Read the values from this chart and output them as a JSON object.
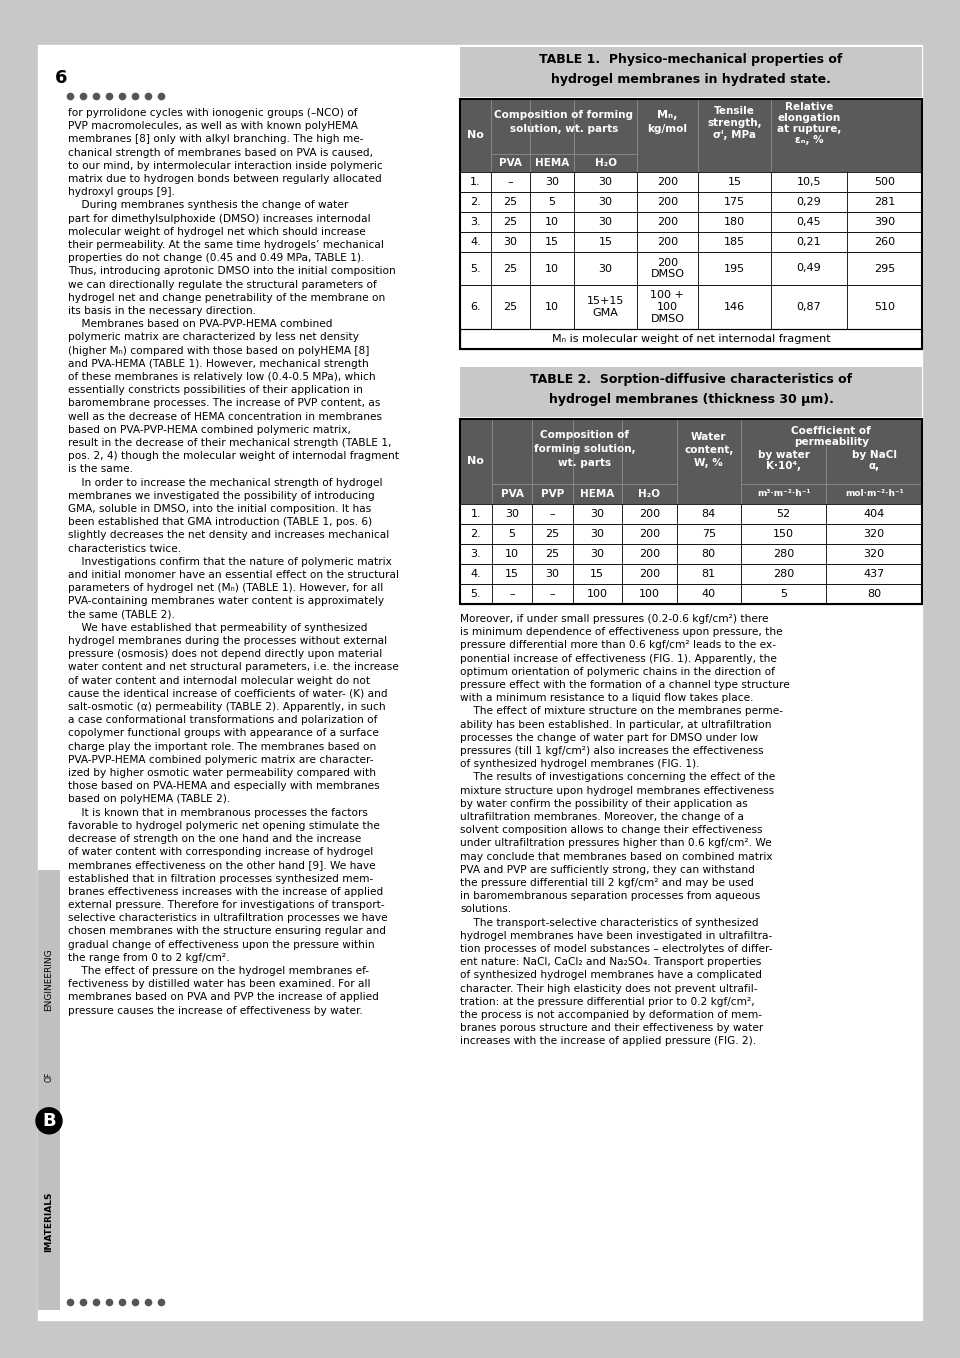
{
  "page_bg": "#c8c8c8",
  "page_number": "6",
  "dots_color": "#555555",
  "left_col_text": [
    "for pyrrolidone cycles with ionogenic groups (–NCO) of",
    "PVP macromolecules, as well as with known polyHEMA",
    "membranes [8] only with alkyl branching. The high me-",
    "chanical strength of membranes based on PVA is caused,",
    "to our mind, by intermolecular interaction inside polymeric",
    "matrix due to hydrogen bonds between regularly allocated",
    "hydroxyl groups [9].",
    "    During membranes synthesis the change of water",
    "part for dimethylsulphoxide (DMSO) increases internodal",
    "molecular weight of hydrogel net which should increase",
    "their permeability. At the same time hydrogels’ mechanical",
    "properties do not change (0.45 and 0.49 MPa, TABLE 1).",
    "Thus, introducing aprotonic DMSO into the initial composition",
    "we can directionally regulate the structural parameters of",
    "hydrogel net and change penetrability of the membrane on",
    "its basis in the necessary direction.",
    "    Membranes based on PVA-PVP-HEMA combined",
    "polymeric matrix are characterized by less net density",
    "(higher Mₙ) compared with those based on polyHEMA [8]",
    "and PVA-HEMA (TABLE 1). However, mechanical strength",
    "of these membranes is relatively low (0.4-0.5 MPa), which",
    "essentially constricts possibilities of their application in",
    "baromembrane processes. The increase of PVP content, as",
    "well as the decrease of HEMA concentration in membranes",
    "based on PVA-PVP-HEMA combined polymeric matrix,",
    "result in the decrease of their mechanical strength (TABLE 1,",
    "pos. 2, 4) though the molecular weight of internodal fragment",
    "is the same.",
    "    In order to increase the mechanical strength of hydrogel",
    "membranes we investigated the possibility of introducing",
    "GMA, soluble in DMSO, into the initial composition. It has",
    "been established that GMA introduction (TABLE 1, pos. 6)",
    "slightly decreases the net density and increases mechanical",
    "characteristics twice.",
    "    Investigations confirm that the nature of polymeric matrix",
    "and initial monomer have an essential effect on the structural",
    "parameters of hydrogel net (Mₙ) (TABLE 1). However, for all",
    "PVA-containing membranes water content is approximately",
    "the same (TABLE 2).",
    "    We have established that permeability of synthesized",
    "hydrogel membranes during the processes without external",
    "pressure (osmosis) does not depend directly upon material",
    "water content and net structural parameters, i.e. the increase",
    "of water content and internodal molecular weight do not",
    "cause the identical increase of coefficients of water- (K) and",
    "salt-osmotic (α) permeability (TABLE 2). Apparently, in such",
    "a case conformational transformations and polarization of",
    "copolymer functional groups with appearance of a surface",
    "charge play the important role. The membranes based on",
    "PVA-PVP-HEMA combined polymeric matrix are character-",
    "ized by higher osmotic water permeability compared with",
    "those based on PVA-HEMA and especially with membranes",
    "based on polyHEMA (TABLE 2).",
    "    It is known that in membranous processes the factors",
    "favorable to hydrogel polymeric net opening stimulate the",
    "decrease of strength on the one hand and the increase",
    "of water content with corresponding increase of hydrogel",
    "membranes effectiveness on the other hand [9]. We have",
    "established that in filtration processes synthesized mem-",
    "branes effectiveness increases with the increase of applied",
    "external pressure. Therefore for investigations of transport-",
    "selective characteristics in ultrafiltration processes we have",
    "chosen membranes with the structure ensuring regular and",
    "gradual change of effectiveness upon the pressure within",
    "the range from 0 to 2 kgf/cm².",
    "    The effect of pressure on the hydrogel membranes ef-",
    "fectiveness by distilled water has been examined. For all",
    "membranes based on PVA and PVP the increase of applied",
    "pressure causes the increase of effectiveness by water."
  ],
  "right_col_text": [
    "Moreover, if under small pressures (0.2-0.6 kgf/cm²) there",
    "is minimum dependence of effectiveness upon pressure, the",
    "pressure differential more than 0.6 kgf/cm² leads to the ex-",
    "ponential increase of effectiveness (FIG. 1). Apparently, the",
    "optimum orientation of polymeric chains in the direction of",
    "pressure effect with the formation of a channel type structure",
    "with a minimum resistance to a liquid flow takes place.",
    "    The effect of mixture structure on the membranes perme-",
    "ability has been established. In particular, at ultrafiltration",
    "processes the change of water part for DMSO under low",
    "pressures (till 1 kgf/cm²) also increases the effectiveness",
    "of synthesized hydrogel membranes (FIG. 1).",
    "    The results of investigations concerning the effect of the",
    "mixture structure upon hydrogel membranes effectiveness",
    "by water confirm the possibility of their application as",
    "ultrafiltration membranes. Moreover, the change of a",
    "solvent composition allows to change their effectiveness",
    "under ultrafiltration pressures higher than 0.6 kgf/cm². We",
    "may conclude that membranes based on combined matrix",
    "PVA and PVP are sufficiently strong, they can withstand",
    "the pressure differential till 2 kgf/cm² and may be used",
    "in baromembranous separation processes from aqueous",
    "solutions.",
    "    The transport-selective characteristics of synthesized",
    "hydrogel membranes have been investigated in ultrafiltra-",
    "tion processes of model substances – electrolytes of differ-",
    "ent nature: NaCl, CaCl₂ and Na₂SO₄. Transport properties",
    "of synthesized hydrogel membranes have a complicated",
    "character. Their high elasticity does not prevent ultrafil-",
    "tration: at the pressure differential prior to 0.2 kgf/cm²,",
    "the process is not accompanied by deformation of mem-",
    "branes porous structure and their effectiveness by water",
    "increases with the increase of applied pressure (FIG. 2)."
  ],
  "table1_rows": [
    [
      "1.",
      "–",
      "30",
      "30",
      "200",
      "15",
      "10,5",
      "500"
    ],
    [
      "2.",
      "25",
      "5",
      "30",
      "200",
      "175",
      "0,29",
      "281"
    ],
    [
      "3.",
      "25",
      "10",
      "30",
      "200",
      "180",
      "0,45",
      "390"
    ],
    [
      "4.",
      "30",
      "15",
      "15",
      "200",
      "185",
      "0,21",
      "260"
    ],
    [
      "5.",
      "25",
      "10",
      "30",
      "200\nDMSO",
      "195",
      "0,49",
      "295"
    ],
    [
      "6.",
      "25",
      "10",
      "15+15\nGMA",
      "100 +\n100\nDMSO",
      "146",
      "0,87",
      "510"
    ]
  ],
  "table2_rows": [
    [
      "1.",
      "30",
      "–",
      "30",
      "200",
      "84",
      "52",
      "404"
    ],
    [
      "2.",
      "5",
      "25",
      "30",
      "200",
      "75",
      "150",
      "320"
    ],
    [
      "3.",
      "10",
      "25",
      "30",
      "200",
      "80",
      "280",
      "320"
    ],
    [
      "4.",
      "15",
      "30",
      "15",
      "200",
      "81",
      "280",
      "437"
    ],
    [
      "5.",
      "–",
      "–",
      "100",
      "100",
      "40",
      "5",
      "80"
    ]
  ]
}
